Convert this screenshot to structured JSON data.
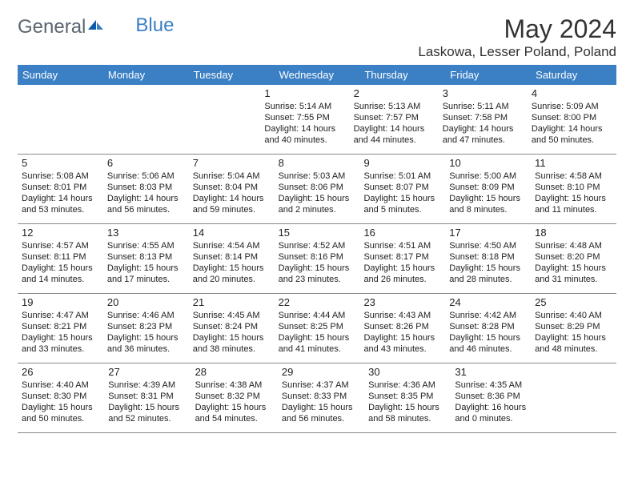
{
  "logo": {
    "text_gray": "General",
    "text_blue": "Blue"
  },
  "title": "May 2024",
  "location": "Laskowa, Lesser Poland, Poland",
  "colors": {
    "header_bg": "#3b7fc4",
    "header_text": "#ffffff",
    "logo_gray": "#5a6570",
    "logo_blue": "#3b7fc4",
    "body_text": "#222222",
    "page_bg": "#ffffff",
    "row_border": "#888888"
  },
  "typography": {
    "title_fontsize": 32,
    "location_fontsize": 17,
    "dayheader_fontsize": 13,
    "daynum_fontsize": 13,
    "detail_fontsize": 11,
    "font_family": "Arial"
  },
  "day_headers": [
    "Sunday",
    "Monday",
    "Tuesday",
    "Wednesday",
    "Thursday",
    "Friday",
    "Saturday"
  ],
  "weeks": [
    [
      null,
      null,
      null,
      {
        "num": "1",
        "sunrise": "Sunrise: 5:14 AM",
        "sunset": "Sunset: 7:55 PM",
        "daylight": "Daylight: 14 hours and 40 minutes."
      },
      {
        "num": "2",
        "sunrise": "Sunrise: 5:13 AM",
        "sunset": "Sunset: 7:57 PM",
        "daylight": "Daylight: 14 hours and 44 minutes."
      },
      {
        "num": "3",
        "sunrise": "Sunrise: 5:11 AM",
        "sunset": "Sunset: 7:58 PM",
        "daylight": "Daylight: 14 hours and 47 minutes."
      },
      {
        "num": "4",
        "sunrise": "Sunrise: 5:09 AM",
        "sunset": "Sunset: 8:00 PM",
        "daylight": "Daylight: 14 hours and 50 minutes."
      }
    ],
    [
      {
        "num": "5",
        "sunrise": "Sunrise: 5:08 AM",
        "sunset": "Sunset: 8:01 PM",
        "daylight": "Daylight: 14 hours and 53 minutes."
      },
      {
        "num": "6",
        "sunrise": "Sunrise: 5:06 AM",
        "sunset": "Sunset: 8:03 PM",
        "daylight": "Daylight: 14 hours and 56 minutes."
      },
      {
        "num": "7",
        "sunrise": "Sunrise: 5:04 AM",
        "sunset": "Sunset: 8:04 PM",
        "daylight": "Daylight: 14 hours and 59 minutes."
      },
      {
        "num": "8",
        "sunrise": "Sunrise: 5:03 AM",
        "sunset": "Sunset: 8:06 PM",
        "daylight": "Daylight: 15 hours and 2 minutes."
      },
      {
        "num": "9",
        "sunrise": "Sunrise: 5:01 AM",
        "sunset": "Sunset: 8:07 PM",
        "daylight": "Daylight: 15 hours and 5 minutes."
      },
      {
        "num": "10",
        "sunrise": "Sunrise: 5:00 AM",
        "sunset": "Sunset: 8:09 PM",
        "daylight": "Daylight: 15 hours and 8 minutes."
      },
      {
        "num": "11",
        "sunrise": "Sunrise: 4:58 AM",
        "sunset": "Sunset: 8:10 PM",
        "daylight": "Daylight: 15 hours and 11 minutes."
      }
    ],
    [
      {
        "num": "12",
        "sunrise": "Sunrise: 4:57 AM",
        "sunset": "Sunset: 8:11 PM",
        "daylight": "Daylight: 15 hours and 14 minutes."
      },
      {
        "num": "13",
        "sunrise": "Sunrise: 4:55 AM",
        "sunset": "Sunset: 8:13 PM",
        "daylight": "Daylight: 15 hours and 17 minutes."
      },
      {
        "num": "14",
        "sunrise": "Sunrise: 4:54 AM",
        "sunset": "Sunset: 8:14 PM",
        "daylight": "Daylight: 15 hours and 20 minutes."
      },
      {
        "num": "15",
        "sunrise": "Sunrise: 4:52 AM",
        "sunset": "Sunset: 8:16 PM",
        "daylight": "Daylight: 15 hours and 23 minutes."
      },
      {
        "num": "16",
        "sunrise": "Sunrise: 4:51 AM",
        "sunset": "Sunset: 8:17 PM",
        "daylight": "Daylight: 15 hours and 26 minutes."
      },
      {
        "num": "17",
        "sunrise": "Sunrise: 4:50 AM",
        "sunset": "Sunset: 8:18 PM",
        "daylight": "Daylight: 15 hours and 28 minutes."
      },
      {
        "num": "18",
        "sunrise": "Sunrise: 4:48 AM",
        "sunset": "Sunset: 8:20 PM",
        "daylight": "Daylight: 15 hours and 31 minutes."
      }
    ],
    [
      {
        "num": "19",
        "sunrise": "Sunrise: 4:47 AM",
        "sunset": "Sunset: 8:21 PM",
        "daylight": "Daylight: 15 hours and 33 minutes."
      },
      {
        "num": "20",
        "sunrise": "Sunrise: 4:46 AM",
        "sunset": "Sunset: 8:23 PM",
        "daylight": "Daylight: 15 hours and 36 minutes."
      },
      {
        "num": "21",
        "sunrise": "Sunrise: 4:45 AM",
        "sunset": "Sunset: 8:24 PM",
        "daylight": "Daylight: 15 hours and 38 minutes."
      },
      {
        "num": "22",
        "sunrise": "Sunrise: 4:44 AM",
        "sunset": "Sunset: 8:25 PM",
        "daylight": "Daylight: 15 hours and 41 minutes."
      },
      {
        "num": "23",
        "sunrise": "Sunrise: 4:43 AM",
        "sunset": "Sunset: 8:26 PM",
        "daylight": "Daylight: 15 hours and 43 minutes."
      },
      {
        "num": "24",
        "sunrise": "Sunrise: 4:42 AM",
        "sunset": "Sunset: 8:28 PM",
        "daylight": "Daylight: 15 hours and 46 minutes."
      },
      {
        "num": "25",
        "sunrise": "Sunrise: 4:40 AM",
        "sunset": "Sunset: 8:29 PM",
        "daylight": "Daylight: 15 hours and 48 minutes."
      }
    ],
    [
      {
        "num": "26",
        "sunrise": "Sunrise: 4:40 AM",
        "sunset": "Sunset: 8:30 PM",
        "daylight": "Daylight: 15 hours and 50 minutes."
      },
      {
        "num": "27",
        "sunrise": "Sunrise: 4:39 AM",
        "sunset": "Sunset: 8:31 PM",
        "daylight": "Daylight: 15 hours and 52 minutes."
      },
      {
        "num": "28",
        "sunrise": "Sunrise: 4:38 AM",
        "sunset": "Sunset: 8:32 PM",
        "daylight": "Daylight: 15 hours and 54 minutes."
      },
      {
        "num": "29",
        "sunrise": "Sunrise: 4:37 AM",
        "sunset": "Sunset: 8:33 PM",
        "daylight": "Daylight: 15 hours and 56 minutes."
      },
      {
        "num": "30",
        "sunrise": "Sunrise: 4:36 AM",
        "sunset": "Sunset: 8:35 PM",
        "daylight": "Daylight: 15 hours and 58 minutes."
      },
      {
        "num": "31",
        "sunrise": "Sunrise: 4:35 AM",
        "sunset": "Sunset: 8:36 PM",
        "daylight": "Daylight: 16 hours and 0 minutes."
      },
      null
    ]
  ]
}
